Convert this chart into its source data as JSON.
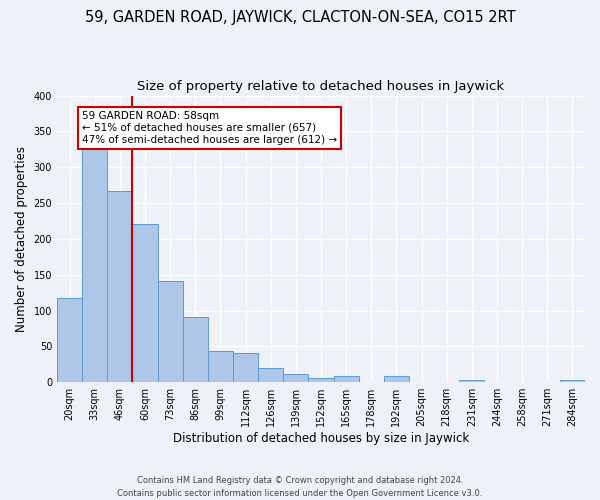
{
  "title": "59, GARDEN ROAD, JAYWICK, CLACTON-ON-SEA, CO15 2RT",
  "subtitle": "Size of property relative to detached houses in Jaywick",
  "xlabel": "Distribution of detached houses by size in Jaywick",
  "ylabel": "Number of detached properties",
  "bin_labels": [
    "20sqm",
    "33sqm",
    "46sqm",
    "60sqm",
    "73sqm",
    "86sqm",
    "99sqm",
    "112sqm",
    "126sqm",
    "139sqm",
    "152sqm",
    "165sqm",
    "178sqm",
    "192sqm",
    "205sqm",
    "218sqm",
    "231sqm",
    "244sqm",
    "258sqm",
    "271sqm",
    "284sqm"
  ],
  "bar_heights": [
    118,
    333,
    267,
    221,
    141,
    91,
    44,
    41,
    20,
    11,
    6,
    8,
    0,
    8,
    0,
    0,
    3,
    0,
    0,
    0,
    3
  ],
  "bar_color": "#aec6e8",
  "bar_edge_color": "#5b9bd5",
  "annotation_title": "59 GARDEN ROAD: 58sqm",
  "annotation_line1": "← 51% of detached houses are smaller (657)",
  "annotation_line2": "47% of semi-detached houses are larger (612) →",
  "annotation_box_color": "white",
  "annotation_box_edge": "#cc0000",
  "vline_color": "#cc0000",
  "footer_line1": "Contains HM Land Registry data © Crown copyright and database right 2024.",
  "footer_line2": "Contains public sector information licensed under the Open Government Licence v3.0.",
  "ylim": [
    0,
    400
  ],
  "yticks": [
    0,
    50,
    100,
    150,
    200,
    250,
    300,
    350,
    400
  ],
  "background_color": "#eef2f8",
  "grid_color": "#ffffff",
  "title_fontsize": 10.5,
  "subtitle_fontsize": 9.5,
  "axis_label_fontsize": 8.5,
  "tick_fontsize": 7,
  "vline_x": 2.5
}
